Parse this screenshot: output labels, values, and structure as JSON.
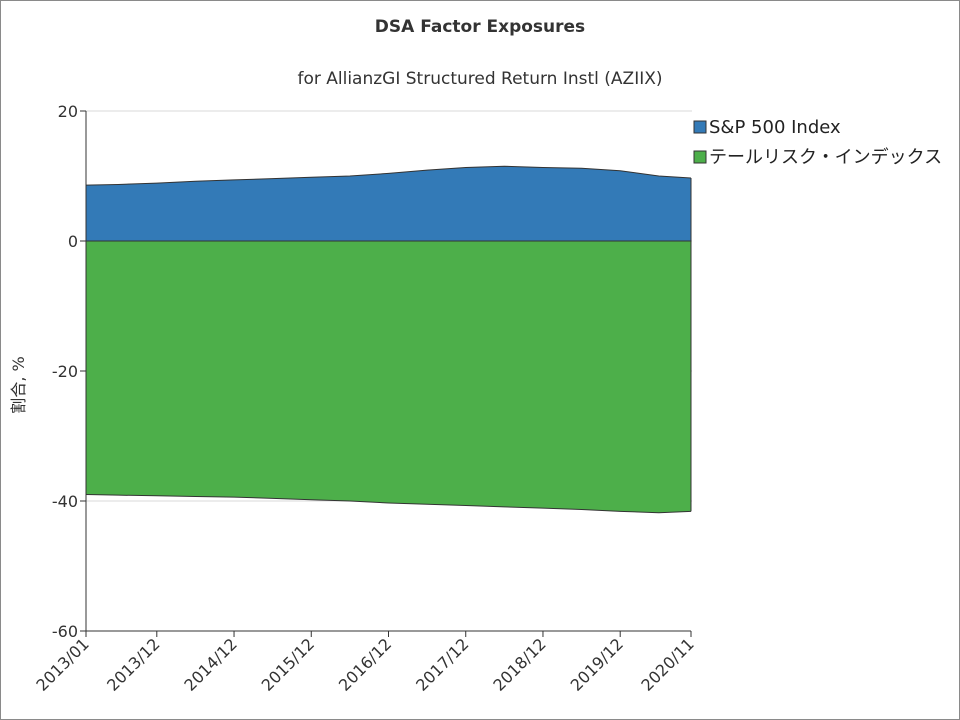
{
  "chart_data": {
    "type": "area",
    "title": "DSA Factor Exposures",
    "subtitle": "for AllianzGI Structured Return Instl (AZIIX)",
    "xlabel": "",
    "ylabel": "割合, %",
    "ylim": [
      -60,
      20
    ],
    "yticks": [
      20,
      0,
      -20,
      -40,
      -60
    ],
    "x_tick_labels": [
      "2013/01",
      "2013/12",
      "2014/12",
      "2015/12",
      "2016/12",
      "2017/12",
      "2018/12",
      "2019/12",
      "2020/11"
    ],
    "x": [
      "2013/01",
      "2013/06",
      "2013/12",
      "2014/06",
      "2014/12",
      "2015/06",
      "2015/12",
      "2016/06",
      "2016/12",
      "2017/06",
      "2017/12",
      "2018/06",
      "2018/12",
      "2019/06",
      "2019/12",
      "2020/06",
      "2020/11"
    ],
    "series": [
      {
        "name": "S&P 500 Index",
        "color": "#337ab7",
        "values": [
          8.6,
          8.7,
          8.9,
          9.2,
          9.4,
          9.6,
          9.8,
          10.0,
          10.4,
          10.9,
          11.3,
          11.5,
          11.3,
          11.2,
          10.8,
          10.0,
          9.7
        ]
      },
      {
        "name": "テールリスク・インデックス",
        "color": "#4daf4a",
        "values": [
          -39.0,
          -39.1,
          -39.2,
          -39.3,
          -39.4,
          -39.6,
          -39.8,
          -40.0,
          -40.3,
          -40.5,
          -40.7,
          -40.9,
          -41.1,
          -41.3,
          -41.6,
          -41.8,
          -41.6
        ]
      }
    ],
    "grid": true,
    "legend": "top-right"
  }
}
